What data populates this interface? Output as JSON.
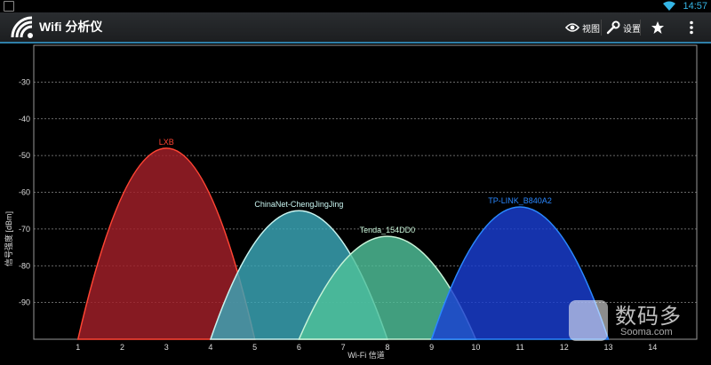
{
  "status_bar": {
    "time": "14:57",
    "wifi_icon": "wifi-icon",
    "notification_icon": "sd-card-icon"
  },
  "app_bar": {
    "title": "Wifi 分析仪",
    "app_icon": "wifi-fan-icon",
    "actions": [
      {
        "icon": "eye-icon",
        "label": "视图"
      },
      {
        "icon": "wrench-icon",
        "label": "设置"
      },
      {
        "icon": "star-icon",
        "label": ""
      },
      {
        "icon": "overflow-menu-icon",
        "label": ""
      }
    ]
  },
  "colors": {
    "accent": "#2f7fa8",
    "time": "#35b5e5"
  },
  "chart_data": {
    "type": "area",
    "xlabel": "Wi-Fi 信道",
    "ylabel": "信号强度 [dBm]",
    "xlim": [
      0,
      15
    ],
    "ylim": [
      -100,
      -20
    ],
    "x_ticks": [
      1,
      2,
      3,
      4,
      5,
      6,
      7,
      8,
      9,
      10,
      11,
      12,
      13,
      14
    ],
    "y_ticks": [
      -30,
      -40,
      -50,
      -60,
      -70,
      -80,
      -90
    ],
    "grid": true,
    "series": [
      {
        "name": "LXB",
        "channel": 3,
        "x_range": [
          1,
          5
        ],
        "peak": -48,
        "color": "#ff4433",
        "fill": "#a3202a"
      },
      {
        "name": "ChinaNet-ChengJingJing",
        "channel": 6,
        "x_range": [
          4,
          8
        ],
        "peak": -65,
        "color": "#c8f4f0",
        "fill": "#3aa7b8"
      },
      {
        "name": "Tenda_154DD0",
        "channel": 8,
        "x_range": [
          6,
          10
        ],
        "peak": -72,
        "color": "#c8f4d8",
        "fill": "#4fc19a"
      },
      {
        "name": "TP-LINK_B840A2",
        "channel": 11,
        "x_range": [
          9,
          13
        ],
        "peak": -64,
        "color": "#2a88ff",
        "fill": "#1a3ed2"
      }
    ]
  },
  "watermark": {
    "text": "数码多",
    "url": "Sooma.com"
  }
}
